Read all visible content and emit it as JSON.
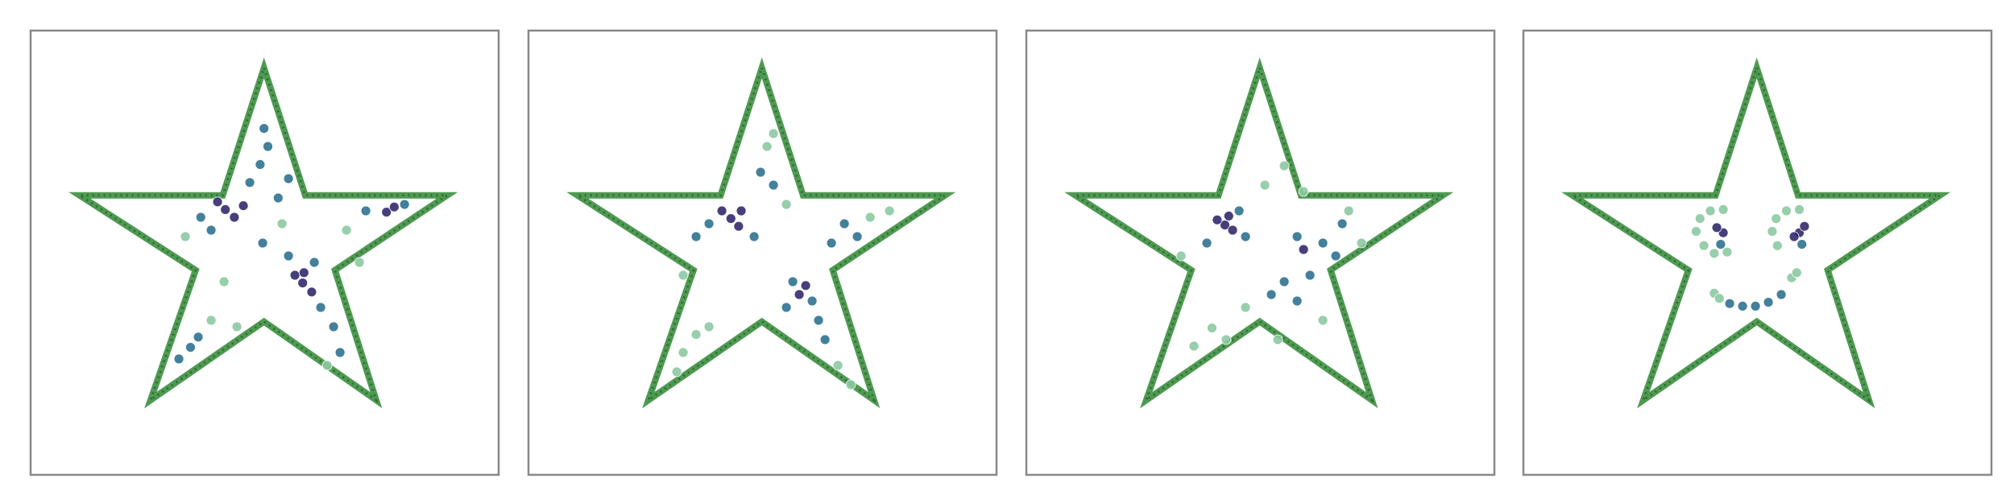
{
  "chart_data": [
    {
      "type": "scatter",
      "xlim": [
        0,
        363
      ],
      "ylim": [
        345,
        0
      ],
      "boundary": {
        "color": "#4f9a52",
        "x": [
          181,
          213,
          323,
          236,
          268,
          181,
          93,
          128,
          38,
          149
        ],
        "values": [
          29,
          128,
          128,
          186,
          287,
          226,
          287,
          186,
          128,
          128
        ]
      },
      "series": [
        {
          "color": "#8cc9a2",
          "x": [
            150,
            120,
            245,
            255,
            140,
            230,
            195,
            160
          ],
          "values": [
            195,
            160,
            155,
            180,
            225,
            260,
            150,
            230
          ]
        },
        {
          "color": "#2f7290",
          "x": [
            181,
            184,
            178,
            170,
            132,
            140,
            192,
            200,
            200,
            225,
            235,
            240,
            260,
            290,
            124,
            115,
            130,
            180,
            220
          ],
          "values": [
            76,
            90,
            104,
            118,
            145,
            155,
            130,
            115,
            175,
            215,
            230,
            250,
            140,
            135,
            246,
            255,
            238,
            165,
            180
          ]
        },
        {
          "color": "#332a6e",
          "x": [
            151,
            145,
            158,
            165,
            211,
            205,
            218,
            212,
            276,
            282
          ],
          "values": [
            139,
            133,
            145,
            136,
            196,
            190,
            203,
            188,
            141,
            137
          ]
        }
      ]
    },
    {
      "type": "scatter",
      "xlim": [
        0,
        363
      ],
      "ylim": [
        345,
        0
      ],
      "boundary": {
        "color": "#4f9a52",
        "x": [
          181,
          213,
          323,
          236,
          268,
          181,
          93,
          128,
          38,
          149
        ],
        "values": [
          29,
          128,
          128,
          186,
          287,
          226,
          287,
          186,
          128,
          128
        ]
      },
      "series": [
        {
          "color": "#8cc9a2",
          "x": [
            185,
            190,
            130,
            120,
            140,
            115,
            240,
            250,
            120,
            200,
            265,
            280
          ],
          "values": [
            90,
            80,
            236,
            250,
            230,
            265,
            260,
            275,
            190,
            135,
            145,
            140
          ]
        },
        {
          "color": "#2f7290",
          "x": [
            140,
            175,
            205,
            220,
            200,
            225,
            245,
            255,
            235,
            190,
            180,
            230,
            130
          ],
          "values": [
            150,
            160,
            195,
            210,
            215,
            225,
            150,
            160,
            165,
            120,
            110,
            240,
            160
          ]
        },
        {
          "color": "#332a6e",
          "x": [
            157,
            150,
            163,
            165,
            210,
            215
          ],
          "values": [
            146,
            140,
            152,
            140,
            205,
            198
          ]
        }
      ]
    },
    {
      "type": "scatter",
      "xlim": [
        0,
        363
      ],
      "ylim": [
        345,
        0
      ],
      "boundary": {
        "color": "#4f9a52",
        "x": [
          181,
          213,
          323,
          236,
          268,
          181,
          93,
          128,
          38,
          149
        ],
        "values": [
          29,
          128,
          128,
          186,
          287,
          226,
          287,
          186,
          128,
          128
        ]
      },
      "series": [
        {
          "color": "#8cc9a2",
          "x": [
            185,
            200,
            215,
            250,
            260,
            144,
            130,
            155,
            170,
            230,
            120,
            195
          ],
          "values": [
            120,
            105,
            125,
            140,
            165,
            231,
            245,
            240,
            215,
            225,
            175,
            240
          ]
        },
        {
          "color": "#2f7290",
          "x": [
            170,
            210,
            230,
            240,
            200,
            210,
            190,
            220,
            165,
            245,
            140
          ],
          "values": [
            160,
            160,
            165,
            175,
            195,
            210,
            205,
            190,
            140,
            150,
            165
          ]
        },
        {
          "color": "#332a6e",
          "x": [
            154,
            148,
            160,
            157,
            215
          ],
          "values": [
            151,
            147,
            155,
            144,
            170
          ]
        }
      ]
    },
    {
      "type": "scatter",
      "xlim": [
        0,
        363
      ],
      "ylim": [
        345,
        0
      ],
      "boundary": {
        "color": "#4f9a52",
        "x": [
          181,
          213,
          323,
          236,
          268,
          181,
          93,
          128,
          38,
          149
        ],
        "values": [
          29,
          128,
          128,
          186,
          287,
          226,
          287,
          186,
          128,
          128
        ]
      },
      "series": [
        {
          "color": "#8cc9a2",
          "x": [
            134,
            137,
            145,
            155,
            140,
            148,
            158,
            193,
            196,
            204,
            214,
            197,
            148,
            152,
            208,
            212
          ],
          "values": [
            156,
            146,
            140,
            139,
            167,
            173,
            172,
            156,
            146,
            140,
            139,
            167,
            204,
            208,
            192,
            188
          ]
        },
        {
          "color": "#2f7290",
          "x": [
            153,
            216,
            160,
            170,
            180,
            190,
            200
          ],
          "values": [
            166,
            166,
            212,
            214,
            214,
            211,
            205
          ]
        },
        {
          "color": "#332a6e",
          "x": [
            155,
            150,
            214,
            218,
            210
          ],
          "values": [
            157,
            153,
            157,
            152,
            160
          ]
        }
      ]
    }
  ]
}
